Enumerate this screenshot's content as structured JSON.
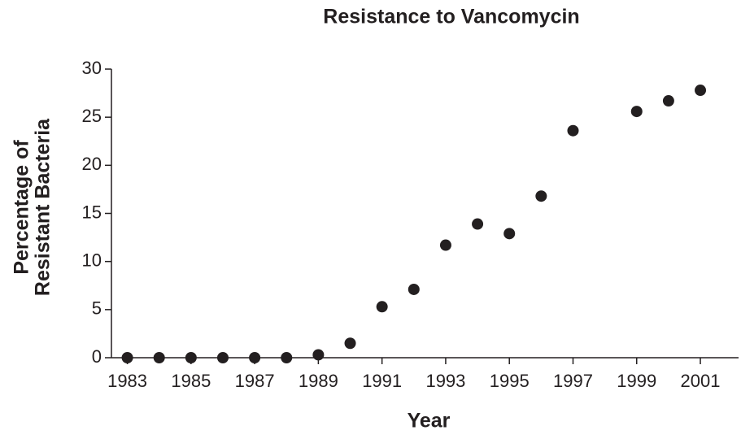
{
  "chart_data": {
    "type": "scatter",
    "title": "Resistance to Vancomycin",
    "xlabel": "Year",
    "ylabel": [
      "Percentage of",
      "Resistant Bacteria"
    ],
    "x": [
      1983,
      1984,
      1985,
      1986,
      1987,
      1988,
      1989,
      1990,
      1991,
      1992,
      1993,
      1994,
      1995,
      1996,
      1997,
      1999,
      2000,
      2001
    ],
    "values": [
      0,
      0,
      0,
      0,
      0,
      0,
      0.3,
      1.5,
      5.3,
      7.1,
      11.7,
      13.9,
      12.9,
      16.8,
      23.6,
      25.6,
      26.7,
      27.8
    ],
    "color": "#231f20",
    "xlim": [
      1982.5,
      2002.2
    ],
    "xticks": [
      1983,
      1985,
      1987,
      1989,
      1991,
      1993,
      1995,
      1997,
      1999,
      2001
    ],
    "ylim": [
      0,
      30
    ],
    "yticks": [
      0,
      5,
      10,
      15,
      20,
      25,
      30
    ],
    "grid": false
  }
}
